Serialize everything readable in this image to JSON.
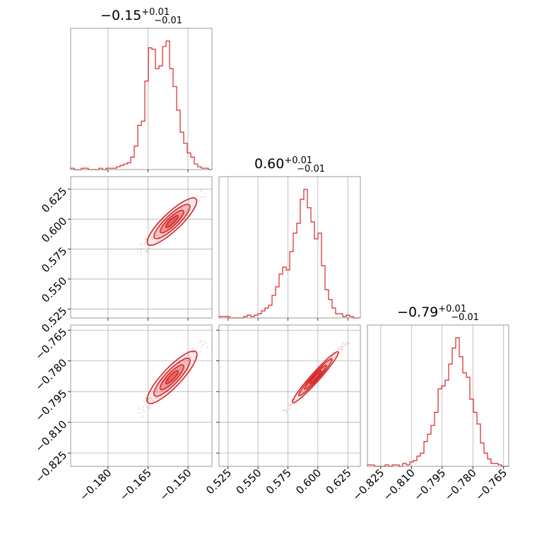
{
  "chart_data": {
    "type": "corner",
    "color": "#d62728",
    "params": [
      {
        "title_value": "−0.15",
        "err_plus": "+0.01",
        "err_minus": "−0.01",
        "range": [
          -0.194,
          -0.141
        ]
      },
      {
        "title_value": "0.60",
        "err_plus": "+0.01",
        "err_minus": "−0.01",
        "range": [
          0.5175,
          0.6355
        ]
      },
      {
        "title_value": "−0.79",
        "err_plus": "+0.01",
        "err_minus": "−0.01",
        "range": [
          -0.8315,
          -0.7625
        ]
      }
    ],
    "ticks": [
      {
        "values": [
          -0.18,
          -0.165,
          -0.15
        ],
        "labels": [
          "−0.180",
          "−0.165",
          "−0.150"
        ]
      },
      {
        "values": [
          0.525,
          0.55,
          0.575,
          0.6,
          0.625
        ],
        "labels": [
          "0.525",
          "0.550",
          "0.575",
          "0.600",
          "0.625"
        ]
      },
      {
        "values": [
          -0.825,
          -0.81,
          -0.795,
          -0.78,
          -0.765
        ],
        "labels": [
          "−0.825",
          "−0.810",
          "−0.795",
          "−0.780",
          "−0.765"
        ]
      }
    ],
    "histograms": [
      {
        "param": 0,
        "edges": [
          -0.194,
          -0.141
        ],
        "counts": [
          1,
          0,
          0,
          1,
          1,
          0,
          0,
          0,
          1,
          0,
          1,
          1,
          1,
          2,
          3,
          4,
          5,
          9,
          17,
          32,
          35,
          64,
          88,
          87,
          73,
          75,
          89,
          93,
          73,
          60,
          43,
          27,
          19,
          12,
          9,
          4,
          2,
          1,
          1,
          0
        ]
      },
      {
        "param": 1,
        "edges": [
          0.5175,
          0.6355
        ],
        "counts": [
          1,
          1,
          1,
          0,
          0,
          0,
          0,
          1,
          2,
          1,
          2,
          3,
          5,
          7,
          9,
          16,
          22,
          31,
          36,
          34,
          47,
          60,
          67,
          84,
          91,
          78,
          68,
          56,
          60,
          37,
          20,
          13,
          7,
          3,
          3,
          1,
          2,
          1,
          0,
          0
        ]
      },
      {
        "param": 2,
        "edges": [
          -0.8315,
          -0.7625
        ],
        "counts": [
          1,
          1,
          0,
          0,
          0,
          1,
          0,
          1,
          1,
          0,
          2,
          1,
          3,
          4,
          7,
          9,
          17,
          22,
          28,
          37,
          53,
          55,
          59,
          70,
          81,
          88,
          75,
          64,
          61,
          46,
          37,
          29,
          16,
          9,
          5,
          2,
          2,
          1,
          0,
          0
        ]
      }
    ],
    "pairs": [
      {
        "x_param": 0,
        "y_param": 1
      },
      {
        "x_param": 0,
        "y_param": 2
      },
      {
        "x_param": 1,
        "y_param": 2
      }
    ],
    "grid": true
  }
}
